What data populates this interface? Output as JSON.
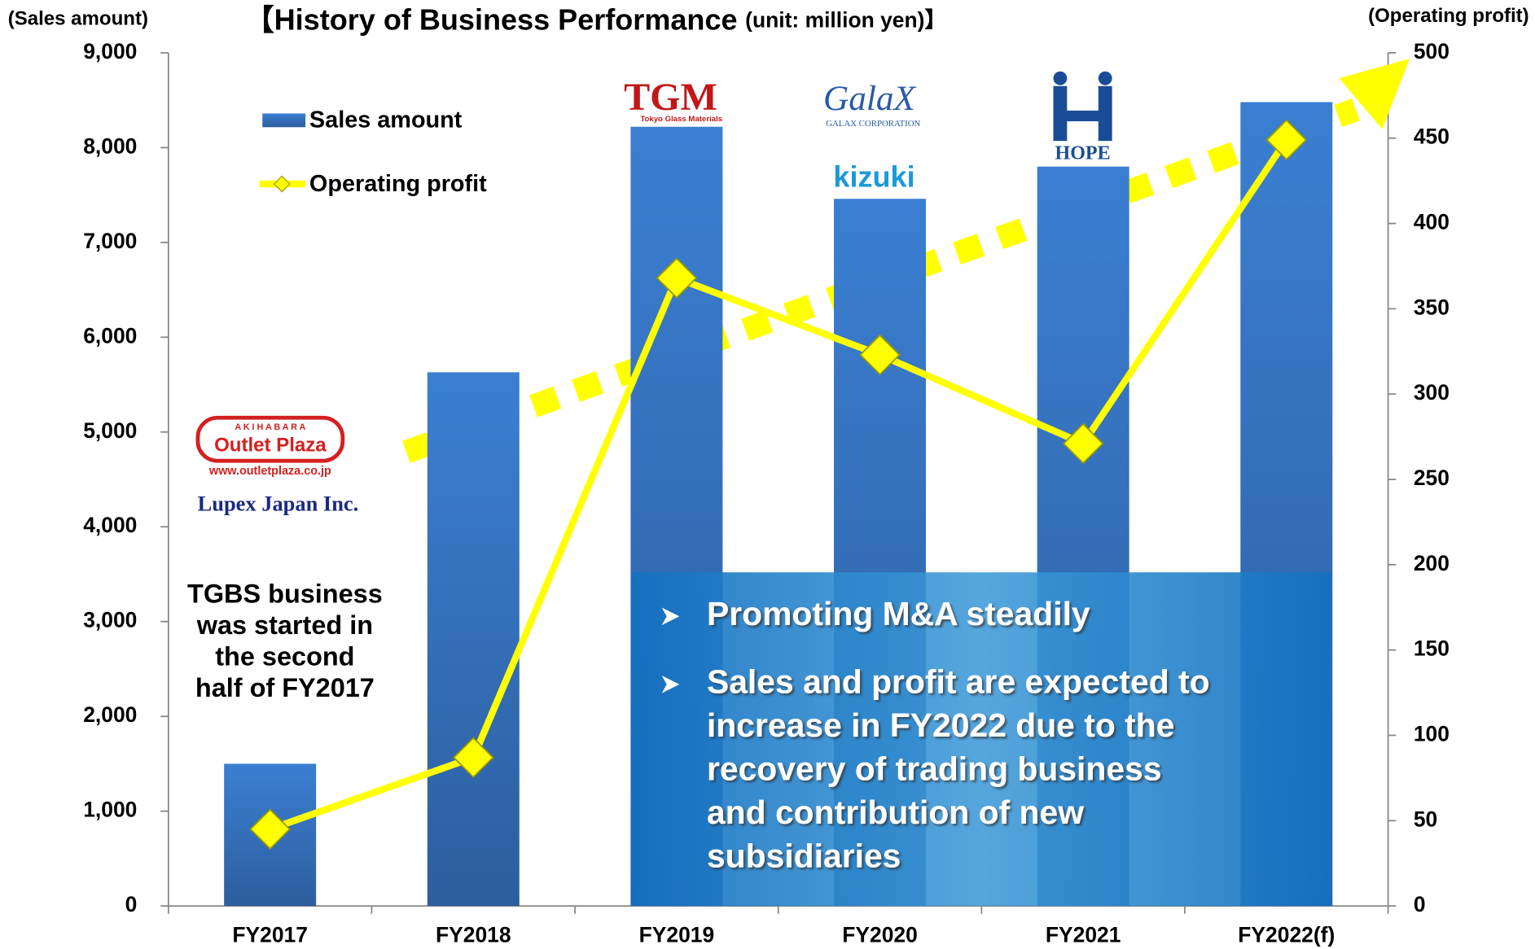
{
  "chart_data": {
    "type": "bar_line",
    "title": "【History of Business Performance",
    "subtitle": "(unit: million yen)】",
    "y_label": "(Sales amount)",
    "y2_label": "(Operating profit)",
    "categories": [
      "FY2017",
      "FY2018",
      "FY2019",
      "FY2020",
      "FY2021",
      "FY2022(f)"
    ],
    "series": [
      {
        "name": "Sales amount",
        "type": "bar",
        "color": "#3a78c8",
        "values": [
          1500,
          5630,
          8220,
          7460,
          7800,
          8480
        ]
      },
      {
        "name": "Operating profit",
        "type": "line",
        "axis": "y2",
        "color": "#ffff00",
        "values": [
          45,
          87,
          368,
          323,
          271,
          449
        ]
      }
    ],
    "ylim": [
      0,
      9000
    ],
    "yticks": [
      0,
      {
        "value": 1000,
        "label": "1,000"
      },
      {
        "value": 2000,
        "label": "2,000"
      },
      {
        "value": 3000,
        "label": "3,000"
      },
      {
        "value": 4000,
        "label": "4,000"
      },
      {
        "value": 5000,
        "label": "5,000"
      },
      {
        "value": 6000,
        "label": "6,000"
      },
      {
        "value": 7000,
        "label": "7,000"
      },
      {
        "value": 8000,
        "label": "8,000"
      },
      {
        "value": 9000,
        "label": "9,000"
      }
    ],
    "y2lim": [
      0,
      500
    ],
    "y2ticks": [
      0,
      50,
      100,
      150,
      200,
      250,
      300,
      350,
      400,
      450,
      500
    ],
    "grid": false,
    "annotation": [
      "TGBS business",
      "was started in",
      "the second",
      "half of FY2017"
    ],
    "bullets": [
      [
        "Promoting M&A steadily"
      ],
      [
        "Sales and profit are expected to",
        "increase in FY2022 due to the",
        "recovery of trading business",
        "and contribution of new",
        "subsidiaries"
      ]
    ],
    "logos": {
      "outlet_top": "A K I H A B A R A",
      "outlet": "Outlet Plaza",
      "outlet_url": "www.outletplaza.co.jp",
      "lupex": "Lupex Japan Inc.",
      "tgm": "TGM",
      "tgm_sub": "Tokyo Glass Materials",
      "galax": "GalaX",
      "galax_sub": "GALAX CORPORATION",
      "kizuki": "kizuki",
      "hope": "HOPE"
    }
  }
}
